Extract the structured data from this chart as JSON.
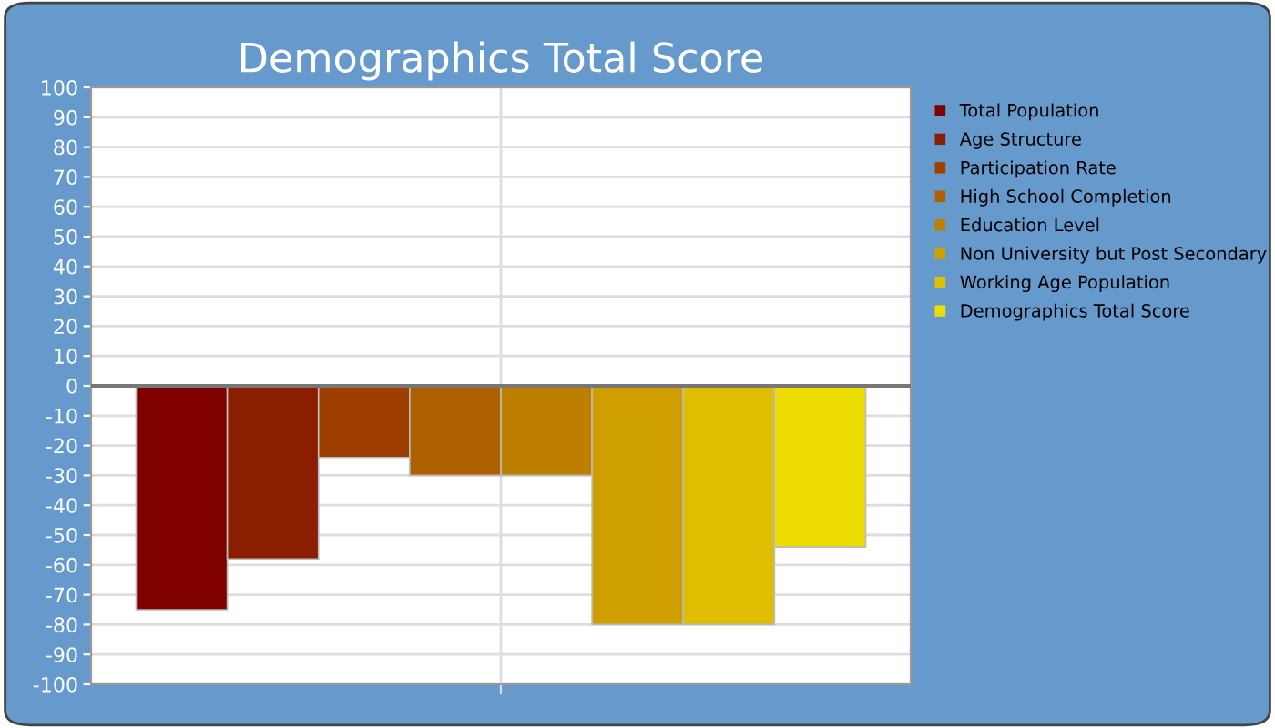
{
  "chart_data": {
    "type": "bar",
    "title": "Demographics Total Score",
    "categories": [
      null
    ],
    "series": [
      {
        "name": "Total Population",
        "color": "#800000",
        "values": [
          -75
        ]
      },
      {
        "name": "Age Structure",
        "color": "#8b1e00",
        "values": [
          -58
        ]
      },
      {
        "name": "Participation Rate",
        "color": "#9e3f00",
        "values": [
          -24
        ]
      },
      {
        "name": "High School Completion",
        "color": "#ae6000",
        "values": [
          -30
        ]
      },
      {
        "name": "Education Level",
        "color": "#be7f00",
        "values": [
          -30
        ]
      },
      {
        "name": "Non University but Post Secondary",
        "color": "#cf9e00",
        "values": [
          -80
        ]
      },
      {
        "name": "Working Age Population",
        "color": "#dfbd00",
        "values": [
          -80
        ]
      },
      {
        "name": "Demographics Total Score",
        "color": "#eedd00",
        "values": [
          -54
        ]
      }
    ],
    "ylim": [
      -100,
      100
    ],
    "yticks": [
      -100,
      -90,
      -80,
      -70,
      -60,
      -50,
      -40,
      -30,
      -20,
      -10,
      0,
      10,
      20,
      30,
      40,
      50,
      60,
      70,
      80,
      90,
      100
    ],
    "grid": true,
    "legend": "right"
  }
}
